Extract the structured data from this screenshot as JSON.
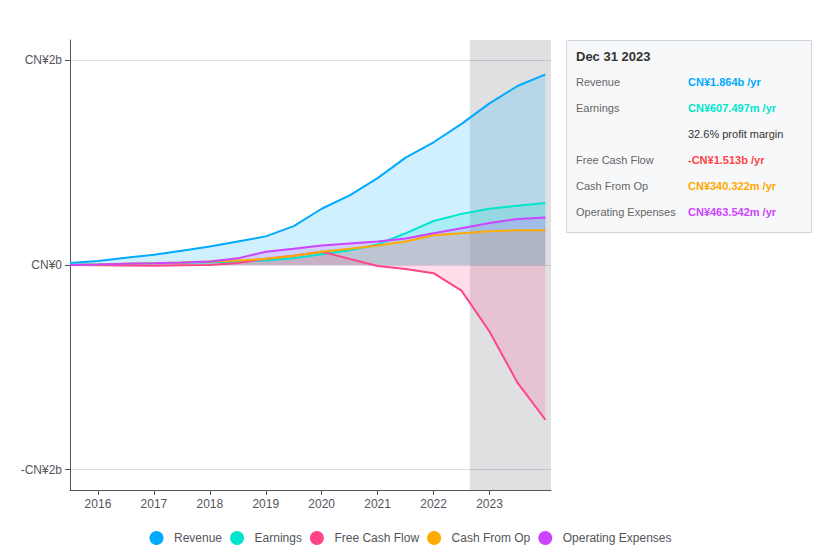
{
  "chart_data": {
    "type": "area",
    "x": [
      2015.5,
      2016.0,
      2016.5,
      2017.0,
      2017.5,
      2018.0,
      2018.5,
      2019.0,
      2019.5,
      2020.0,
      2020.5,
      2021.0,
      2021.5,
      2022.0,
      2022.5,
      2023.0,
      2023.5,
      2024.0
    ],
    "series": [
      {
        "name": "Revenue",
        "color": "#00aaff",
        "values": [
          0.02,
          0.04,
          0.07,
          0.1,
          0.14,
          0.18,
          0.23,
          0.28,
          0.38,
          0.55,
          0.68,
          0.85,
          1.05,
          1.2,
          1.38,
          1.58,
          1.75,
          1.864
        ]
      },
      {
        "name": "Earnings",
        "color": "#00e5cc",
        "values": [
          0.005,
          0.008,
          0.012,
          0.018,
          0.022,
          0.028,
          0.035,
          0.045,
          0.065,
          0.105,
          0.145,
          0.2,
          0.31,
          0.43,
          0.5,
          0.55,
          0.58,
          0.607
        ]
      },
      {
        "name": "Free Cash Flow",
        "color": "#ff4488",
        "values": [
          0.0,
          -0.003,
          -0.005,
          -0.008,
          -0.003,
          0.0,
          0.02,
          0.06,
          0.09,
          0.13,
          0.06,
          -0.01,
          -0.04,
          -0.08,
          -0.25,
          -0.65,
          -1.15,
          -1.513
        ]
      },
      {
        "name": "Cash From Op",
        "color": "#ffaa00",
        "values": [
          0.0,
          0.005,
          0.012,
          0.018,
          0.025,
          0.035,
          0.045,
          0.06,
          0.09,
          0.13,
          0.16,
          0.19,
          0.23,
          0.29,
          0.31,
          0.33,
          0.34,
          0.34
        ]
      },
      {
        "name": "Operating Expenses",
        "color": "#cc44ff",
        "values": [
          0.0,
          0.005,
          0.012,
          0.018,
          0.025,
          0.035,
          0.065,
          0.13,
          0.16,
          0.19,
          0.21,
          0.23,
          0.26,
          0.31,
          0.36,
          0.41,
          0.45,
          0.464
        ]
      }
    ],
    "xlim": [
      2015.5,
      2024.1
    ],
    "xticks": [
      2016,
      2017,
      2018,
      2019,
      2020,
      2021,
      2022,
      2023
    ],
    "ylim": [
      -2.2,
      2.2
    ],
    "yticks": [
      {
        "value": -2,
        "label": "-CN¥2b"
      },
      {
        "value": 0,
        "label": "CN¥0"
      },
      {
        "value": 2,
        "label": "CN¥2b"
      }
    ],
    "grid": true,
    "legend": "bottom",
    "annotations": {
      "box_title": "Dec 31 2023",
      "rows": [
        {
          "label": "Revenue",
          "value": "CN¥1.864b /yr",
          "color": "#00aaff"
        },
        {
          "label": "Earnings",
          "value": "CN¥607.497m /yr",
          "color": "#00e5cc"
        },
        {
          "value": "32.6% profit margin"
        },
        {
          "label": "Free Cash Flow",
          "value": "-CN¥1.513b /yr",
          "color": "#ff4444"
        },
        {
          "label": "Cash From Op",
          "value": "CN¥340.322m /yr",
          "color": "#ffaa00"
        },
        {
          "label": "Operating Expenses",
          "value": "CN¥463.542m /yr",
          "color": "#cc44ff"
        }
      ],
      "shaded_x": [
        2022.65,
        2024.1
      ]
    }
  }
}
